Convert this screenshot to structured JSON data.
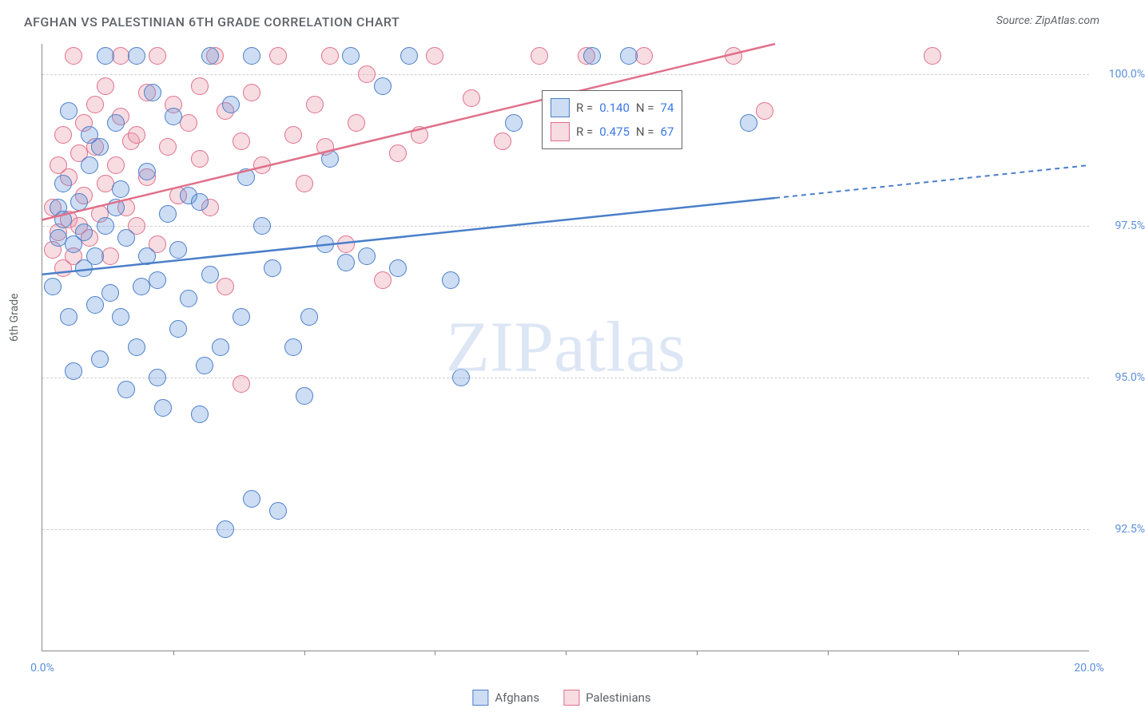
{
  "chart": {
    "type": "scatter",
    "title": "AFGHAN VS PALESTINIAN 6TH GRADE CORRELATION CHART",
    "source_label": "Source:",
    "source_value": "ZipAtlas.com",
    "background_color": "#ffffff",
    "grid_color": "#d0d0d0",
    "axis_color": "#888888",
    "title_color": "#5f6368",
    "tick_color": "#5b8fd9",
    "ylabel": "6th Grade",
    "xlim": [
      0,
      20
    ],
    "ylim": [
      90.5,
      100.5
    ],
    "xtick_labels": [
      "0.0%",
      "20.0%"
    ],
    "xtick_positions_labeled": [
      0,
      20
    ],
    "xtick_minor": [
      2.5,
      5,
      7.5,
      10,
      12.5,
      15,
      17.5
    ],
    "ytick_labels": [
      "92.5%",
      "95.0%",
      "97.5%",
      "100.0%"
    ],
    "ytick_positions": [
      92.5,
      95.0,
      97.5,
      100.0
    ],
    "marker_radius": 11,
    "marker_stroke_width": 1.5,
    "marker_fill_opacity": 0.3,
    "series_a": {
      "label": "Afghans",
      "color": "#5b8fd9",
      "fill": "rgba(91,143,217,0.30)",
      "stroke": "#4a7fc9",
      "R": "0.140",
      "N": "74",
      "trend": {
        "x0": 0,
        "y0": 96.7,
        "x1": 20,
        "y1": 98.5,
        "solid_until_x": 14.0
      },
      "points": [
        [
          0.2,
          96.5
        ],
        [
          0.3,
          97.3
        ],
        [
          0.3,
          97.8
        ],
        [
          0.4,
          97.6
        ],
        [
          0.4,
          98.2
        ],
        [
          0.5,
          99.4
        ],
        [
          0.5,
          96.0
        ],
        [
          0.6,
          97.2
        ],
        [
          0.6,
          95.1
        ],
        [
          0.7,
          97.9
        ],
        [
          0.8,
          96.8
        ],
        [
          0.8,
          97.4
        ],
        [
          0.9,
          98.5
        ],
        [
          0.9,
          99.0
        ],
        [
          1.0,
          97.0
        ],
        [
          1.0,
          96.2
        ],
        [
          1.1,
          95.3
        ],
        [
          1.1,
          98.8
        ],
        [
          1.2,
          100.3
        ],
        [
          1.2,
          97.5
        ],
        [
          1.3,
          96.4
        ],
        [
          1.4,
          99.2
        ],
        [
          1.4,
          97.8
        ],
        [
          1.5,
          96.0
        ],
        [
          1.5,
          98.1
        ],
        [
          1.6,
          94.8
        ],
        [
          1.6,
          97.3
        ],
        [
          1.8,
          95.5
        ],
        [
          1.8,
          100.3
        ],
        [
          1.9,
          96.5
        ],
        [
          2.0,
          97.0
        ],
        [
          2.0,
          98.4
        ],
        [
          2.1,
          99.7
        ],
        [
          2.2,
          95.0
        ],
        [
          2.2,
          96.6
        ],
        [
          2.3,
          94.5
        ],
        [
          2.4,
          97.7
        ],
        [
          2.5,
          99.3
        ],
        [
          2.6,
          97.1
        ],
        [
          2.6,
          95.8
        ],
        [
          2.8,
          96.3
        ],
        [
          2.8,
          98.0
        ],
        [
          3.0,
          94.4
        ],
        [
          3.0,
          97.9
        ],
        [
          3.1,
          95.2
        ],
        [
          3.2,
          100.3
        ],
        [
          3.2,
          96.7
        ],
        [
          3.4,
          95.5
        ],
        [
          3.5,
          92.5
        ],
        [
          3.6,
          99.5
        ],
        [
          3.8,
          96.0
        ],
        [
          3.9,
          98.3
        ],
        [
          4.0,
          93.0
        ],
        [
          4.0,
          100.3
        ],
        [
          4.2,
          97.5
        ],
        [
          4.4,
          96.8
        ],
        [
          4.5,
          92.8
        ],
        [
          4.8,
          95.5
        ],
        [
          5.0,
          94.7
        ],
        [
          5.1,
          96.0
        ],
        [
          5.4,
          97.2
        ],
        [
          5.5,
          98.6
        ],
        [
          5.8,
          96.9
        ],
        [
          5.9,
          100.3
        ],
        [
          6.2,
          97.0
        ],
        [
          6.5,
          99.8
        ],
        [
          6.8,
          96.8
        ],
        [
          7.0,
          100.3
        ],
        [
          7.8,
          96.6
        ],
        [
          8.0,
          95.0
        ],
        [
          9.0,
          99.2
        ],
        [
          10.5,
          100.3
        ],
        [
          11.2,
          100.3
        ],
        [
          13.5,
          99.2
        ]
      ]
    },
    "series_b": {
      "label": "Palestinians",
      "color": "#e89bab",
      "fill": "rgba(232,155,171,0.35)",
      "stroke": "#e0708a",
      "R": "0.475",
      "N": "67",
      "trend": {
        "x0": 0,
        "y0": 97.6,
        "x1": 14.0,
        "y1": 100.5,
        "solid_until_x": 14.0
      },
      "points": [
        [
          0.2,
          97.1
        ],
        [
          0.2,
          97.8
        ],
        [
          0.3,
          98.5
        ],
        [
          0.3,
          97.4
        ],
        [
          0.4,
          96.8
        ],
        [
          0.4,
          99.0
        ],
        [
          0.5,
          97.6
        ],
        [
          0.5,
          98.3
        ],
        [
          0.6,
          97.0
        ],
        [
          0.6,
          100.3
        ],
        [
          0.7,
          98.7
        ],
        [
          0.7,
          97.5
        ],
        [
          0.8,
          99.2
        ],
        [
          0.8,
          98.0
        ],
        [
          0.9,
          97.3
        ],
        [
          1.0,
          98.8
        ],
        [
          1.0,
          99.5
        ],
        [
          1.1,
          97.7
        ],
        [
          1.2,
          98.2
        ],
        [
          1.2,
          99.8
        ],
        [
          1.3,
          97.0
        ],
        [
          1.4,
          98.5
        ],
        [
          1.5,
          99.3
        ],
        [
          1.5,
          100.3
        ],
        [
          1.6,
          97.8
        ],
        [
          1.7,
          98.9
        ],
        [
          1.8,
          99.0
        ],
        [
          1.8,
          97.5
        ],
        [
          2.0,
          99.7
        ],
        [
          2.0,
          98.3
        ],
        [
          2.2,
          100.3
        ],
        [
          2.2,
          97.2
        ],
        [
          2.4,
          98.8
        ],
        [
          2.5,
          99.5
        ],
        [
          2.6,
          98.0
        ],
        [
          2.8,
          99.2
        ],
        [
          3.0,
          98.6
        ],
        [
          3.0,
          99.8
        ],
        [
          3.2,
          97.8
        ],
        [
          3.3,
          100.3
        ],
        [
          3.5,
          99.4
        ],
        [
          3.5,
          96.5
        ],
        [
          3.8,
          98.9
        ],
        [
          3.8,
          94.9
        ],
        [
          4.0,
          99.7
        ],
        [
          4.2,
          98.5
        ],
        [
          4.5,
          100.3
        ],
        [
          4.8,
          99.0
        ],
        [
          5.0,
          98.2
        ],
        [
          5.2,
          99.5
        ],
        [
          5.4,
          98.8
        ],
        [
          5.5,
          100.3
        ],
        [
          5.8,
          97.2
        ],
        [
          6.0,
          99.2
        ],
        [
          6.2,
          100.0
        ],
        [
          6.5,
          96.6
        ],
        [
          6.8,
          98.7
        ],
        [
          7.2,
          99.0
        ],
        [
          7.5,
          100.3
        ],
        [
          8.2,
          99.6
        ],
        [
          8.8,
          98.9
        ],
        [
          9.5,
          100.3
        ],
        [
          10.4,
          100.3
        ],
        [
          11.5,
          100.3
        ],
        [
          13.2,
          100.3
        ],
        [
          13.8,
          99.4
        ],
        [
          17.0,
          100.3
        ]
      ]
    },
    "r_label": "R =",
    "n_label": "N =",
    "watermark": {
      "zip": "ZIP",
      "atlas": "atlas"
    }
  }
}
